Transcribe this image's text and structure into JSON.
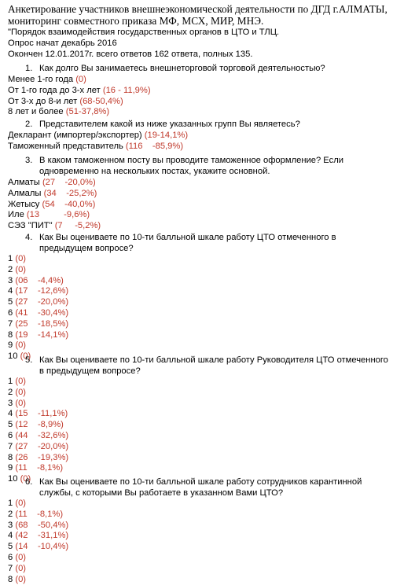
{
  "header": {
    "line1": "Анкетирование участников внешнеэкономической деятельности по ДГД г.АЛМАТЫ,",
    "line2": "мониторинг совместного приказа МФ, МСХ, МИР, МНЭ.",
    "line3": "\"Порядок взаимодействия государственных органов в ЦТО и ТЛЦ.",
    "line4": "Опрос начат декабрь 2016",
    "line5": "Окончен 12.01.2017г. всего ответов 162 ответа, полных 135."
  },
  "questions": [
    {
      "num": "1.",
      "text": "Как долго Вы занимаетесь внешнеторговой торговой деятельностью?",
      "answers": [
        {
          "label": "Менее 1-го года ",
          "value": "(0)"
        },
        {
          "label": "От 1-го года до 3-х лет ",
          "value": "(16 - 11,9%)"
        },
        {
          "label": "От 3-х до 8-и лет ",
          "value": "(68-50,4%)"
        },
        {
          "label": "8 лет и более ",
          "value": "(51-37,8%)"
        }
      ]
    },
    {
      "num": "2.",
      "text": "Представителем какой из ниже указанных групп Вы являетесь?",
      "answers": [
        {
          "label": "Декларант (импортер/экспортер) ",
          "value": "(19-14,1%)"
        },
        {
          "label": "Таможенный представитель ",
          "value": "(116    -85,9%)"
        }
      ]
    },
    {
      "num": "3.",
      "text": "В каком таможенном посту вы проводите таможенное оформление? Если одновременно на нескольких постах, укажите основной.",
      "answers": [
        {
          "label": "Алматы ",
          "value": "(27    -20,0%)"
        },
        {
          "label": "Алмалы ",
          "value": "(34    -25,2%)"
        },
        {
          "label": "Жетысу ",
          "value": "(54    -40,0%)"
        },
        {
          "label": "Иле ",
          "value": "(13          -9,6%)"
        },
        {
          "label": "СЭЗ \"ПИТ\" ",
          "value": "(7     -5,2%)"
        }
      ]
    },
    {
      "num": "4.",
      "text": "Как Вы оцениваете по 10-ти балльной шкале работу ЦТО отмеченного в предыдущем вопросе?",
      "answers": [
        {
          "label": "1 ",
          "value": "(0)"
        },
        {
          "label": "2 ",
          "value": "(0)"
        },
        {
          "label": "3 ",
          "value": "(06    -4,4%)"
        },
        {
          "label": "4 ",
          "value": "(17    -12,6%)"
        },
        {
          "label": "5 ",
          "value": "(27    -20,0%)"
        },
        {
          "label": "6 ",
          "value": "(41    -30,4%)"
        },
        {
          "label": "7 ",
          "value": "(25    -18,5%)"
        },
        {
          "label": "8 ",
          "value": "(19    -14,1%)"
        },
        {
          "label": "9 ",
          "value": "(0)"
        },
        {
          "label": "10 ",
          "value": "(0)"
        }
      ]
    },
    {
      "num": "5.",
      "text": "Как Вы оцениваете по 10-ти балльной шкале работу Руководителя ЦТО отмеченного в предыдущем вопросе?",
      "answers": [
        {
          "label": "1 ",
          "value": "(0)"
        },
        {
          "label": "2 ",
          "value": "(0)"
        },
        {
          "label": "3 ",
          "value": "(0)"
        },
        {
          "label": "4 ",
          "value": "(15    -11,1%)"
        },
        {
          "label": "5 ",
          "value": "(12    -8,9%)"
        },
        {
          "label": "6 ",
          "value": "(44    -32,6%)"
        },
        {
          "label": "7 ",
          "value": "(27    -20,0%)"
        },
        {
          "label": "8 ",
          "value": "(26    -19,3%)"
        },
        {
          "label": "9 ",
          "value": "(11    -8,1%)"
        },
        {
          "label": "10 ",
          "value": "(0)"
        }
      ]
    },
    {
      "num": "6.",
      "text": "Как Вы оцениваете по 10-ти балльной шкале работу сотрудников карантинной службы, с которыми Вы работаете в указанном Вами ЦТО?",
      "answers": [
        {
          "label": "1 ",
          "value": "(0)"
        },
        {
          "label": "2 ",
          "value": "(11    -8,1%)"
        },
        {
          "label": "3 ",
          "value": "(68    -50,4%)"
        },
        {
          "label": "4 ",
          "value": "(42    -31,1%)"
        },
        {
          "label": "5 ",
          "value": "(14    -10,4%)"
        },
        {
          "label": "6 ",
          "value": "(0)"
        },
        {
          "label": "7 ",
          "value": "(0)"
        },
        {
          "label": "8 ",
          "value": "(0)"
        }
      ]
    }
  ]
}
